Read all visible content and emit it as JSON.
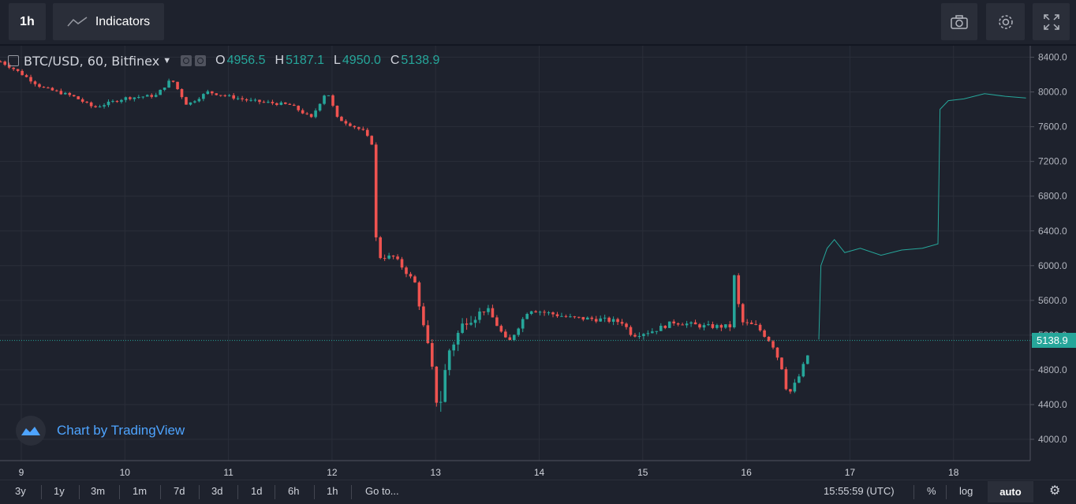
{
  "toolbar": {
    "interval_label": "1h",
    "indicators_label": "Indicators",
    "icons": [
      "camera-icon",
      "gear-icon",
      "fullscreen-icon"
    ]
  },
  "legend": {
    "symbol": "BTC/USD, 60, Bitfinex",
    "open_label": "O",
    "open": "4956.5",
    "high_label": "H",
    "high": "5187.1",
    "low_label": "L",
    "low": "4950.0",
    "close_label": "C",
    "close": "5138.9"
  },
  "watermark": "Chart by TradingView",
  "last_price_tag": "5138.9",
  "bottom": {
    "ranges": [
      "3y",
      "1y",
      "3m",
      "1m",
      "7d",
      "3d",
      "1d",
      "6h",
      "1h"
    ],
    "goto": "Go to...",
    "time": "15:55:59 (UTC)",
    "percent": "%",
    "log": "log",
    "auto": "auto"
  },
  "colors": {
    "up": "#26a69a",
    "down": "#ef5350",
    "background": "#1e222d",
    "forecast_line": "#26a69a"
  },
  "chart_data": {
    "type": "candlestick",
    "ylim": [
      3850,
      8550
    ],
    "y_ticks": [
      "8400.0",
      "8000.0",
      "7600.0",
      "7200.0",
      "6800.0",
      "6400.0",
      "6000.0",
      "5600.0",
      "5200.0",
      "4800.0",
      "4400.0",
      "4000.0"
    ],
    "x_ticks": [
      "9",
      "10",
      "11",
      "12",
      "13",
      "14",
      "15",
      "16",
      "17",
      "18"
    ],
    "x_start_day": 8.8,
    "last_price": 5138.9,
    "candle_keypoints": [
      [
        8.8,
        8350
      ],
      [
        8.95,
        8250
      ],
      [
        9.2,
        8050
      ],
      [
        9.5,
        7950
      ],
      [
        9.7,
        7820
      ],
      [
        10.0,
        7930
      ],
      [
        10.3,
        7960
      ],
      [
        10.45,
        8150
      ],
      [
        10.6,
        7850
      ],
      [
        10.8,
        8000
      ],
      [
        11.2,
        7900
      ],
      [
        11.6,
        7850
      ],
      [
        11.8,
        7700
      ],
      [
        11.95,
        8020
      ],
      [
        12.05,
        7700
      ],
      [
        12.3,
        7550
      ],
      [
        12.4,
        7380
      ],
      [
        12.43,
        6100
      ],
      [
        12.6,
        6100
      ],
      [
        12.8,
        5800
      ],
      [
        12.95,
        4900
      ],
      [
        13.03,
        4300
      ],
      [
        13.12,
        5000
      ],
      [
        13.3,
        5400
      ],
      [
        13.5,
        5500
      ],
      [
        13.7,
        5100
      ],
      [
        13.9,
        5500
      ],
      [
        14.1,
        5450
      ],
      [
        14.3,
        5400
      ],
      [
        14.6,
        5380
      ],
      [
        14.8,
        5350
      ],
      [
        14.9,
        5200
      ],
      [
        15.1,
        5250
      ],
      [
        15.3,
        5350
      ],
      [
        15.6,
        5300
      ],
      [
        15.85,
        5300
      ],
      [
        15.88,
        5900
      ],
      [
        15.95,
        5350
      ],
      [
        16.1,
        5300
      ],
      [
        16.25,
        5100
      ],
      [
        16.35,
        4800
      ],
      [
        16.4,
        4500
      ],
      [
        16.5,
        4700
      ],
      [
        16.62,
        5050
      ]
    ],
    "forecast_line": [
      [
        16.7,
        5150
      ],
      [
        16.72,
        6000
      ],
      [
        16.78,
        6200
      ],
      [
        16.85,
        6300
      ],
      [
        16.95,
        6150
      ],
      [
        17.1,
        6200
      ],
      [
        17.3,
        6120
      ],
      [
        17.5,
        6180
      ],
      [
        17.7,
        6200
      ],
      [
        17.85,
        6250
      ],
      [
        17.87,
        7800
      ],
      [
        17.95,
        7900
      ],
      [
        18.1,
        7920
      ],
      [
        18.3,
        7980
      ],
      [
        18.5,
        7950
      ],
      [
        18.7,
        7930
      ]
    ]
  }
}
